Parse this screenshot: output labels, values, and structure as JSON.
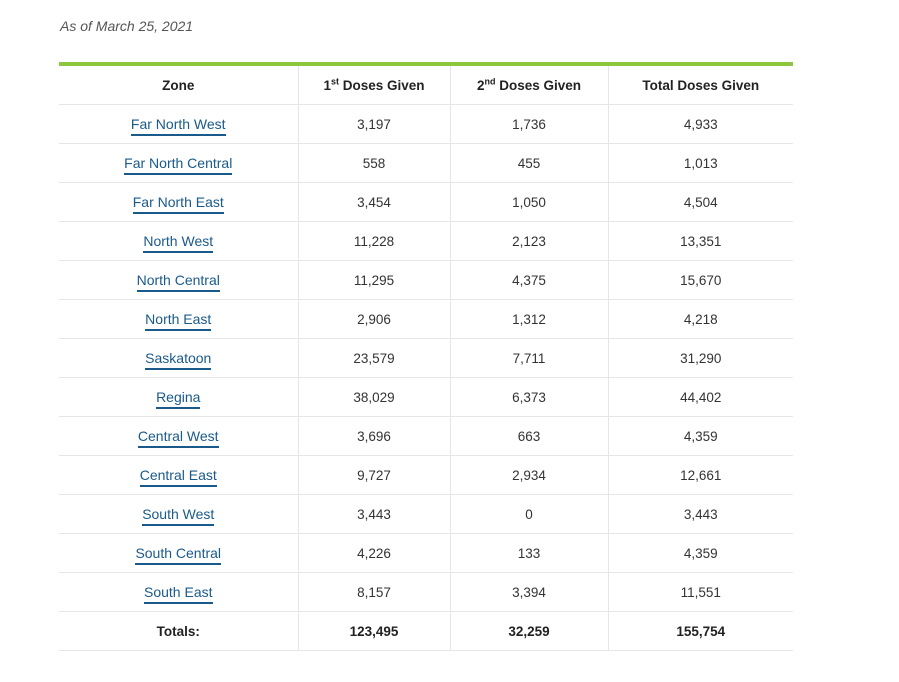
{
  "as_of": "As of March 25, 2021",
  "headers": {
    "zone": "Zone",
    "first_sup": "st",
    "first_prefix": "1",
    "first_rest": " Doses Given",
    "second_prefix": "2",
    "second_sup": "nd",
    "second_rest": " Doses Given",
    "total": "Total Doses Given"
  },
  "rows": [
    {
      "zone": "Far North West",
      "first": "3,197",
      "second": "1,736",
      "total": "4,933"
    },
    {
      "zone": "Far North Central",
      "first": "558",
      "second": "455",
      "total": "1,013"
    },
    {
      "zone": "Far North East",
      "first": "3,454",
      "second": "1,050",
      "total": "4,504"
    },
    {
      "zone": "North West",
      "first": "11,228",
      "second": "2,123",
      "total": "13,351"
    },
    {
      "zone": "North Central",
      "first": "11,295",
      "second": "4,375",
      "total": "15,670"
    },
    {
      "zone": "North East",
      "first": "2,906",
      "second": "1,312",
      "total": "4,218"
    },
    {
      "zone": "Saskatoon",
      "first": "23,579",
      "second": "7,711",
      "total": "31,290"
    },
    {
      "zone": "Regina",
      "first": "38,029",
      "second": "6,373",
      "total": "44,402"
    },
    {
      "zone": "Central West",
      "first": "3,696",
      "second": "663",
      "total": "4,359"
    },
    {
      "zone": "Central East",
      "first": "9,727",
      "second": "2,934",
      "total": "12,661"
    },
    {
      "zone": "South West",
      "first": "3,443",
      "second": "0",
      "total": "3,443"
    },
    {
      "zone": "South Central",
      "first": "4,226",
      "second": "133",
      "total": "4,359"
    },
    {
      "zone": "South East",
      "first": "8,157",
      "second": "3,394",
      "total": "11,551"
    }
  ],
  "totals": {
    "label": "Totals:",
    "first": "123,495",
    "second": "32,259",
    "total": "155,754"
  },
  "colors": {
    "accent_bar": "#8cc63f",
    "link": "#1a5a8a"
  }
}
